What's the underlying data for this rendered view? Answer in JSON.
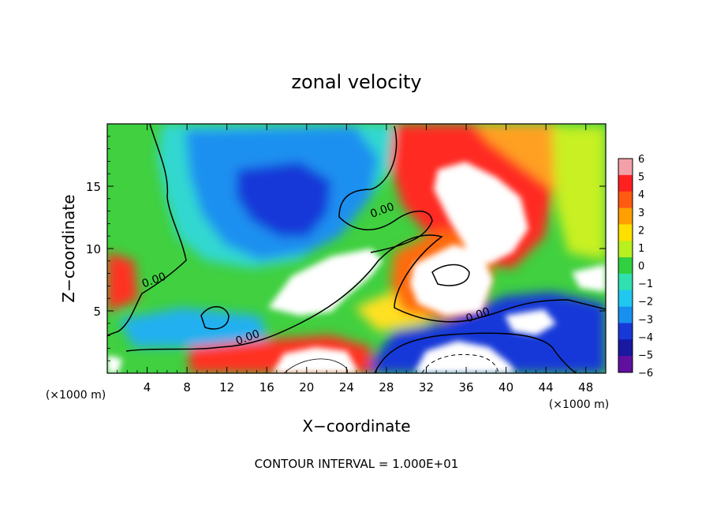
{
  "chart_data": {
    "type": "heatmap",
    "title": "zonal velocity",
    "xlabel": "X−coordinate",
    "ylabel": "Z−coordinate",
    "x_unit_left": "(×1000 m)",
    "x_unit_right": "(×1000 m)",
    "footer": "CONTOUR INTERVAL = 1.000E+01",
    "xlim": [
      0,
      50
    ],
    "ylim": [
      0,
      20
    ],
    "x_ticks": [
      4,
      8,
      12,
      16,
      20,
      24,
      28,
      32,
      36,
      40,
      44,
      48
    ],
    "x_tick_labels": [
      "4",
      "8",
      "12",
      "16",
      "20",
      "24",
      "28",
      "32",
      "36",
      "40",
      "44",
      "48"
    ],
    "y_ticks": [
      5,
      10,
      15
    ],
    "y_tick_labels": [
      "5",
      "10",
      "15"
    ],
    "contour_labels": [
      {
        "text": "0.00",
        "x": 27.7,
        "z": 12.8
      },
      {
        "text": "0.00",
        "x": 4.8,
        "z": 7.2
      },
      {
        "text": "0.00",
        "x": 14.2,
        "z": 2.6
      },
      {
        "text": "0.00",
        "x": 37.3,
        "z": 4.4
      }
    ],
    "colorbar": {
      "levels": [
        6,
        5,
        4,
        3,
        2,
        1,
        0,
        -1,
        -2,
        -3,
        -4,
        -5,
        -6
      ],
      "labels": [
        "6",
        "5",
        "4",
        "3",
        "2",
        "1",
        "0",
        "−1",
        "−2",
        "−3",
        "−4",
        "−5",
        "−6"
      ],
      "colors": [
        "#f4a0a8",
        "#ff2020",
        "#ff5a10",
        "#ffa000",
        "#ffe000",
        "#b8f020",
        "#30d040",
        "#30e0b0",
        "#20c8f0",
        "#1890f0",
        "#1838d8",
        "#1818a0",
        "#6010a0"
      ]
    },
    "regions": [
      {
        "name": "background-green",
        "value": 0.5
      },
      {
        "name": "upper-left-cyan",
        "value": -2.5
      },
      {
        "name": "central-blue-core",
        "value": -5
      },
      {
        "name": "upper-right-red",
        "value": 4.5
      },
      {
        "name": "upper-right-white",
        "value": 7
      },
      {
        "name": "central-white",
        "value": 7
      },
      {
        "name": "lower-blue-band",
        "value": -4.5
      }
    ]
  }
}
